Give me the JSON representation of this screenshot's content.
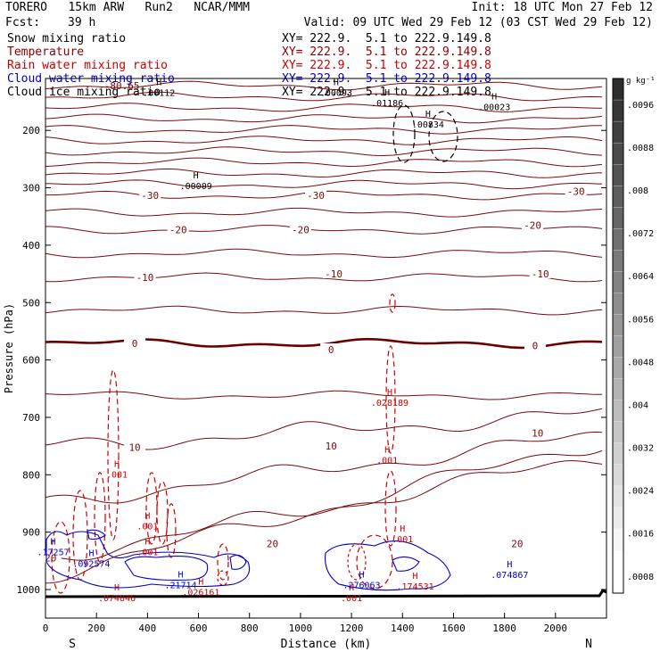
{
  "header": {
    "model": "TORERO   15km ARW   Run2   NCAR/MMM",
    "init": "Init: 18 UTC Mon 27 Feb 12",
    "fcst_label": "Fcst:",
    "fcst_value": "39 h",
    "valid": "Valid: 09 UTC Wed 29 Feb 12 (03 CST Wed 29 Feb 12)"
  },
  "legend": [
    {
      "name": "Snow mixing ratio",
      "color": "#000000",
      "xy": "XY= 222.9.  5.1 to 222.9.149.8"
    },
    {
      "name": "Temperature",
      "color": "#8b0000",
      "xy": "XY= 222.9.  5.1 to 222.9.149.8"
    },
    {
      "name": "Rain water mixing ratio",
      "color": "#cc0000",
      "xy": "XY= 222.9.  5.1 to 222.9.149.8"
    },
    {
      "name": "Cloud water mixing ratio",
      "color": "#0000cc",
      "xy": "XY= 222.9.  5.1 to 222.9.149.8"
    },
    {
      "name": "Cloud ice mixing ratio",
      "color": "#000000",
      "xy": "XY= 222.9.  5.1 to 222.9.149.8"
    }
  ],
  "colors": {
    "temperature": "#7a0a0a",
    "rain": "#cc0000",
    "cloud_water": "#0000cc",
    "ice": "#000000",
    "freezing": "#6a0000"
  },
  "chart_data": {
    "type": "contour",
    "xlabel": "Distance (km)",
    "ylabel": "Pressure (hPa)",
    "x_range": [
      0,
      2200
    ],
    "y_range": [
      1050,
      100
    ],
    "x_ticks": [
      0,
      200,
      400,
      600,
      800,
      1000,
      1200,
      1400,
      1600,
      1800,
      2000
    ],
    "y_ticks": [
      200,
      300,
      400,
      500,
      600,
      700,
      800,
      900,
      1000
    ],
    "x_end_labels": {
      "left": "S",
      "right": "N"
    },
    "temperature_contours": [
      {
        "level": -30,
        "labels": [
          {
            "x": 410,
            "p": 313
          },
          {
            "x": 1060,
            "p": 313
          },
          {
            "x": 2080,
            "p": 306
          }
        ]
      },
      {
        "level": -20,
        "labels": [
          {
            "x": 520,
            "p": 373
          },
          {
            "x": 1000,
            "p": 373
          },
          {
            "x": 1910,
            "p": 365
          }
        ]
      },
      {
        "level": -10,
        "labels": [
          {
            "x": 390,
            "p": 456
          },
          {
            "x": 1130,
            "p": 450
          },
          {
            "x": 1940,
            "p": 450
          }
        ]
      },
      {
        "level": 0,
        "labels": [
          {
            "x": 350,
            "p": 571
          },
          {
            "x": 1120,
            "p": 582
          },
          {
            "x": 1920,
            "p": 575
          }
        ]
      },
      {
        "level": 10,
        "labels": [
          {
            "x": 350,
            "p": 752
          },
          {
            "x": 1120,
            "p": 750
          },
          {
            "x": 1930,
            "p": 727
          }
        ]
      },
      {
        "level": 20,
        "labels": [
          {
            "x": 20,
            "p": 945
          },
          {
            "x": 890,
            "p": 920
          },
          {
            "x": 1850,
            "p": 920
          }
        ]
      }
    ],
    "extra_label": "-80.65",
    "maxima": [
      {
        "field": "snow",
        "x": 445,
        "p": 140,
        "value": ".00112"
      },
      {
        "field": "snow",
        "x": 1140,
        "p": 140,
        "value": ".00093"
      },
      {
        "field": "snow",
        "x": 1340,
        "p": 158,
        "value": ".01186"
      },
      {
        "field": "snow",
        "x": 1760,
        "p": 165,
        "value": ".00023"
      },
      {
        "field": "snow",
        "x": 1500,
        "p": 195,
        "value": ".00834"
      },
      {
        "field": "snow",
        "x": 590,
        "p": 302,
        "value": ".00009"
      },
      {
        "field": "rain",
        "x": 1350,
        "p": 680,
        "value": ".028189"
      },
      {
        "field": "rain",
        "x": 280,
        "p": 805,
        "value": ".001"
      },
      {
        "field": "rain",
        "x": 400,
        "p": 895,
        "value": ".001"
      },
      {
        "field": "rain",
        "x": 400,
        "p": 940,
        "value": ".001"
      },
      {
        "field": "rain",
        "x": 1340,
        "p": 780,
        "value": ".001"
      },
      {
        "field": "rain",
        "x": 1400,
        "p": 918,
        "value": ".001"
      },
      {
        "field": "rain",
        "x": 1200,
        "p": 1020,
        "value": ".001"
      },
      {
        "field": "rain",
        "x": 280,
        "p": 1020,
        "value": ".074846"
      },
      {
        "field": "rain",
        "x": 1450,
        "p": 1000,
        "value": ".174531"
      },
      {
        "field": "rain",
        "x": 610,
        "p": 1010,
        "value": ".026161"
      },
      {
        "field": "cloud_water",
        "x": 30,
        "p": 940,
        "value": ".17257"
      },
      {
        "field": "cloud_water",
        "x": 180,
        "p": 960,
        "value": ".092574"
      },
      {
        "field": "cloud_water",
        "x": 530,
        "p": 998,
        "value": ".21714"
      },
      {
        "field": "cloud_water",
        "x": 1240,
        "p": 998,
        "value": ".276063"
      },
      {
        "field": "cloud_water",
        "x": 1820,
        "p": 980,
        "value": ".074867"
      }
    ],
    "colorbar": {
      "unit": "g kg⁻¹",
      "ticks": [
        ".0096",
        ".0088",
        ".008",
        ".0072",
        ".0064",
        ".0056",
        ".0048",
        ".004",
        ".0032",
        ".0024",
        ".0016",
        ".0008"
      ]
    }
  }
}
